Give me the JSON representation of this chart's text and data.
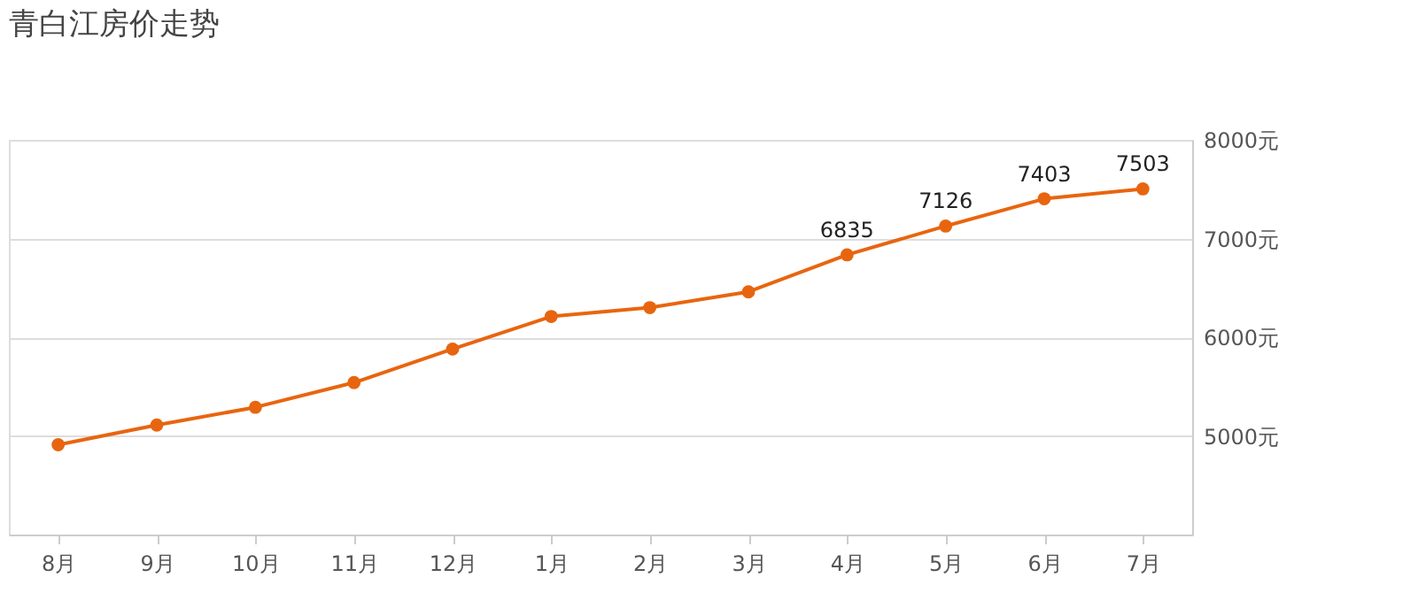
{
  "chart_data": {
    "type": "line",
    "title": "青白江房价走势",
    "categories": [
      "8月",
      "9月",
      "10月",
      "11月",
      "12月",
      "1月",
      "2月",
      "3月",
      "4月",
      "5月",
      "6月",
      "7月"
    ],
    "series": [
      {
        "color": "#e8650f",
        "values": [
          4910,
          5110,
          5290,
          5540,
          5880,
          6210,
          6300,
          6460,
          6835,
          7126,
          7403,
          7503
        ],
        "value_labels": [
          null,
          null,
          null,
          null,
          null,
          null,
          null,
          null,
          "6835",
          "7126",
          "7403",
          "7503"
        ]
      }
    ],
    "ylim": [
      4000,
      8000
    ],
    "yticks": [
      {
        "value": 5000,
        "label": "5000元"
      },
      {
        "value": 6000,
        "label": "6000元"
      },
      {
        "value": 7000,
        "label": "7000元"
      },
      {
        "value": 8000,
        "label": "8000元"
      }
    ],
    "grid": "y",
    "marker": "circle",
    "line_style": "solid"
  }
}
